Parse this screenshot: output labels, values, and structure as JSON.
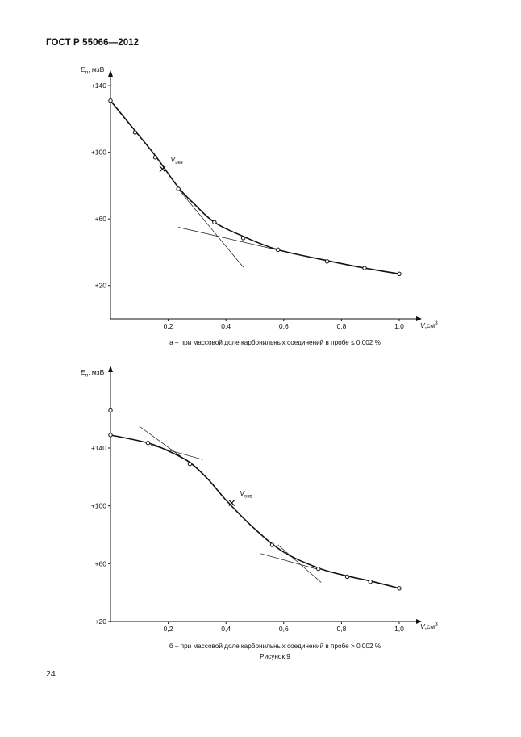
{
  "header": {
    "title": "ГОСТ Р 55066—2012"
  },
  "page_number": "24",
  "figure_caption": "Рисунок 9",
  "chart_data": [
    {
      "type": "line",
      "caption": "а – при массовой доле карбонильных соединений в пробе ≤ 0,002 %",
      "ylabel": {
        "main": "E",
        "sub": "п",
        "unit": ", мзВ"
      },
      "xlabel": {
        "main": "V",
        "unit": ",см",
        "sup": "3"
      },
      "xlim": [
        0,
        1.0
      ],
      "ylim": [
        0,
        160
      ],
      "xticks": [
        {
          "value": 0.2,
          "label": "0,2"
        },
        {
          "value": 0.4,
          "label": "0,4"
        },
        {
          "value": 0.6,
          "label": "0,6"
        },
        {
          "value": 0.8,
          "label": "0,8"
        },
        {
          "value": 1.0,
          "label": "1,0"
        }
      ],
      "yticks": [
        {
          "value": 20,
          "label": "+20"
        },
        {
          "value": 60,
          "label": "+60"
        },
        {
          "value": 100,
          "label": "+100"
        },
        {
          "value": 140,
          "label": "+140"
        }
      ],
      "curve": [
        {
          "x": 0.0,
          "y": 131
        },
        {
          "x": 0.085,
          "y": 113
        },
        {
          "x": 0.155,
          "y": 98
        },
        {
          "x": 0.235,
          "y": 79
        },
        {
          "x": 0.29,
          "y": 69
        },
        {
          "x": 0.36,
          "y": 58
        },
        {
          "x": 0.46,
          "y": 49.5
        },
        {
          "x": 0.58,
          "y": 41.5
        },
        {
          "x": 0.75,
          "y": 35
        },
        {
          "x": 0.88,
          "y": 30.5
        },
        {
          "x": 1.0,
          "y": 27
        }
      ],
      "points": [
        {
          "x": 0.0,
          "y": 131
        },
        {
          "x": 0.085,
          "y": 112
        },
        {
          "x": 0.155,
          "y": 97
        },
        {
          "x": 0.235,
          "y": 78
        },
        {
          "x": 0.36,
          "y": 58
        },
        {
          "x": 0.46,
          "y": 48.5
        },
        {
          "x": 0.58,
          "y": 41.5
        },
        {
          "x": 0.75,
          "y": 34.5
        },
        {
          "x": 0.88,
          "y": 30.5
        },
        {
          "x": 1.0,
          "y": 27
        }
      ],
      "equivalence": {
        "x": 0.18,
        "y": 90,
        "label_main": "V",
        "label_sub": "экв"
      },
      "tangents": [
        {
          "x1": 0.235,
          "y1": 78,
          "x2": 0.46,
          "y2": 31
        },
        {
          "x1": 0.235,
          "y1": 55,
          "x2": 0.6,
          "y2": 40.5
        }
      ]
    },
    {
      "type": "line",
      "caption": "б – при массовой доле карбонильных соединений в пробе > 0,002 %",
      "ylabel": {
        "main": "E",
        "sub": "п",
        "unit": ", мзВ"
      },
      "xlabel": {
        "main": "V",
        "unit": ",см",
        "sup": "3"
      },
      "xlim": [
        0,
        1.0
      ],
      "ylim": [
        20,
        180
      ],
      "xticks": [
        {
          "value": 0.2,
          "label": "0,2"
        },
        {
          "value": 0.4,
          "label": "0,4"
        },
        {
          "value": 0.6,
          "label": "0,6"
        },
        {
          "value": 0.8,
          "label": "0,8"
        },
        {
          "value": 1.0,
          "label": "1,0"
        }
      ],
      "yticks": [
        {
          "value": 20,
          "label": "+20"
        },
        {
          "value": 60,
          "label": "+60"
        },
        {
          "value": 100,
          "label": "+100"
        },
        {
          "value": 140,
          "label": "+140"
        }
      ],
      "outlier_point": {
        "x": 0.0,
        "y": 166
      },
      "curve": [
        {
          "x": 0.0,
          "y": 149
        },
        {
          "x": 0.13,
          "y": 143.5
        },
        {
          "x": 0.2,
          "y": 138
        },
        {
          "x": 0.275,
          "y": 130
        },
        {
          "x": 0.34,
          "y": 118
        },
        {
          "x": 0.4,
          "y": 104
        },
        {
          "x": 0.5,
          "y": 84
        },
        {
          "x": 0.6,
          "y": 68
        },
        {
          "x": 0.72,
          "y": 57
        },
        {
          "x": 0.82,
          "y": 51.5
        },
        {
          "x": 0.9,
          "y": 48
        },
        {
          "x": 1.0,
          "y": 43
        }
      ],
      "points": [
        {
          "x": 0.0,
          "y": 149
        },
        {
          "x": 0.13,
          "y": 143.5
        },
        {
          "x": 0.275,
          "y": 129
        },
        {
          "x": 0.56,
          "y": 73
        },
        {
          "x": 0.72,
          "y": 56.5
        },
        {
          "x": 0.82,
          "y": 51
        },
        {
          "x": 0.9,
          "y": 47.5
        },
        {
          "x": 1.0,
          "y": 43
        }
      ],
      "equivalence": {
        "x": 0.42,
        "y": 102,
        "label_main": "V",
        "label_sub": "экв"
      },
      "tangents": [
        {
          "x1": 0.1,
          "y1": 155,
          "x2": 0.3,
          "y2": 126
        },
        {
          "x1": 0.14,
          "y1": 142,
          "x2": 0.32,
          "y2": 132
        },
        {
          "x1": 0.52,
          "y1": 67,
          "x2": 0.72,
          "y2": 56
        },
        {
          "x1": 0.58,
          "y1": 73,
          "x2": 0.73,
          "y2": 47
        }
      ]
    }
  ]
}
